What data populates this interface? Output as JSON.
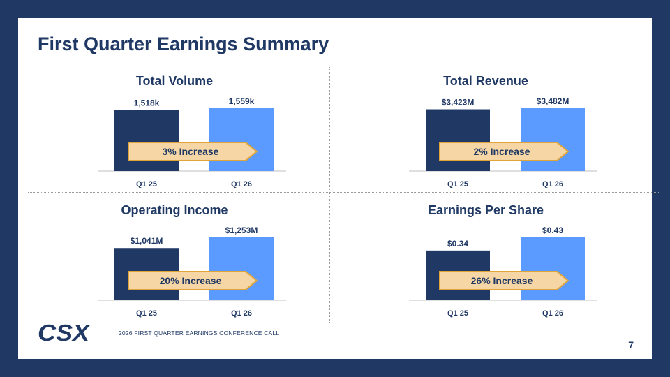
{
  "title": "First Quarter Earnings Summary",
  "footer": "2026 FIRST QUARTER EARNINGS CONFERENCE CALL",
  "page_number": "7",
  "logo_text": "CSX",
  "colors": {
    "background": "#1f3864",
    "bar_prior": "#1f3864",
    "bar_current": "#5b9bff",
    "arrow_fill": "#f5d6a4",
    "arrow_border": "#e0a53a",
    "text": "#1f3864"
  },
  "chart_data": [
    {
      "type": "bar",
      "title": "Total Volume",
      "categories": [
        "Q1 25",
        "Q1 26"
      ],
      "values": [
        1518,
        1559
      ],
      "value_labels": [
        "1,518k",
        "1,559k"
      ],
      "annotation": "3% Increase"
    },
    {
      "type": "bar",
      "title": "Total Revenue",
      "categories": [
        "Q1 25",
        "Q1 26"
      ],
      "values": [
        3423,
        3482
      ],
      "value_labels": [
        "$3,423M",
        "$3,482M"
      ],
      "annotation": "2% Increase"
    },
    {
      "type": "bar",
      "title": "Operating Income",
      "categories": [
        "Q1 25",
        "Q1 26"
      ],
      "values": [
        1041,
        1253
      ],
      "value_labels": [
        "$1,041M",
        "$1,253M"
      ],
      "annotation": "20% Increase"
    },
    {
      "type": "bar",
      "title": "Earnings Per Share",
      "categories": [
        "Q1 25",
        "Q1 26"
      ],
      "values": [
        0.34,
        0.43
      ],
      "value_labels": [
        "$0.34",
        "$0.43"
      ],
      "annotation": "26% Increase"
    }
  ]
}
